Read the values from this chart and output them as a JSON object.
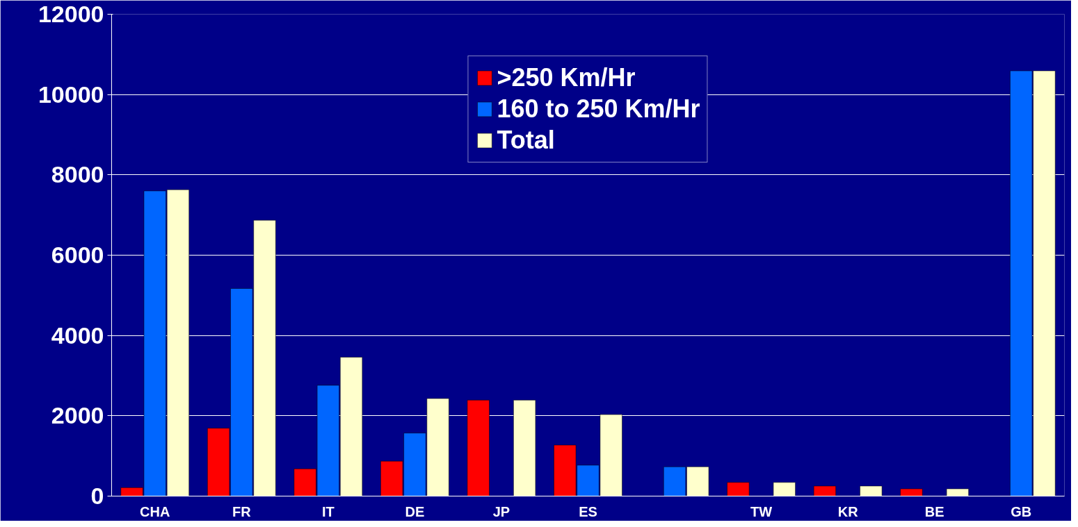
{
  "chart_data": {
    "type": "bar",
    "categories": [
      "CHA",
      "FR",
      "IT",
      "DE",
      "JP",
      "ES",
      null,
      "TW",
      "KR",
      "BE",
      "GB"
    ],
    "series": [
      {
        "name": ">250 Km/Hr",
        "color": "#ff0000",
        "values": [
          210,
          1690,
          680,
          870,
          2390,
          1270,
          null,
          340,
          250,
          180,
          null
        ]
      },
      {
        "name": "160 to 250 Km/Hr",
        "color": "#0066ff",
        "values": [
          7600,
          5170,
          2760,
          1570,
          null,
          770,
          730,
          null,
          null,
          null,
          10590
        ]
      },
      {
        "name": "Total",
        "color": "#ffffcc",
        "values": [
          7630,
          6870,
          3460,
          2430,
          2390,
          2030,
          730,
          340,
          250,
          180,
          10590
        ]
      }
    ],
    "ylim": [
      0,
      12000
    ],
    "yticks": [
      0,
      2000,
      4000,
      6000,
      8000,
      10000,
      12000
    ],
    "grid": "y",
    "legend": "top"
  }
}
